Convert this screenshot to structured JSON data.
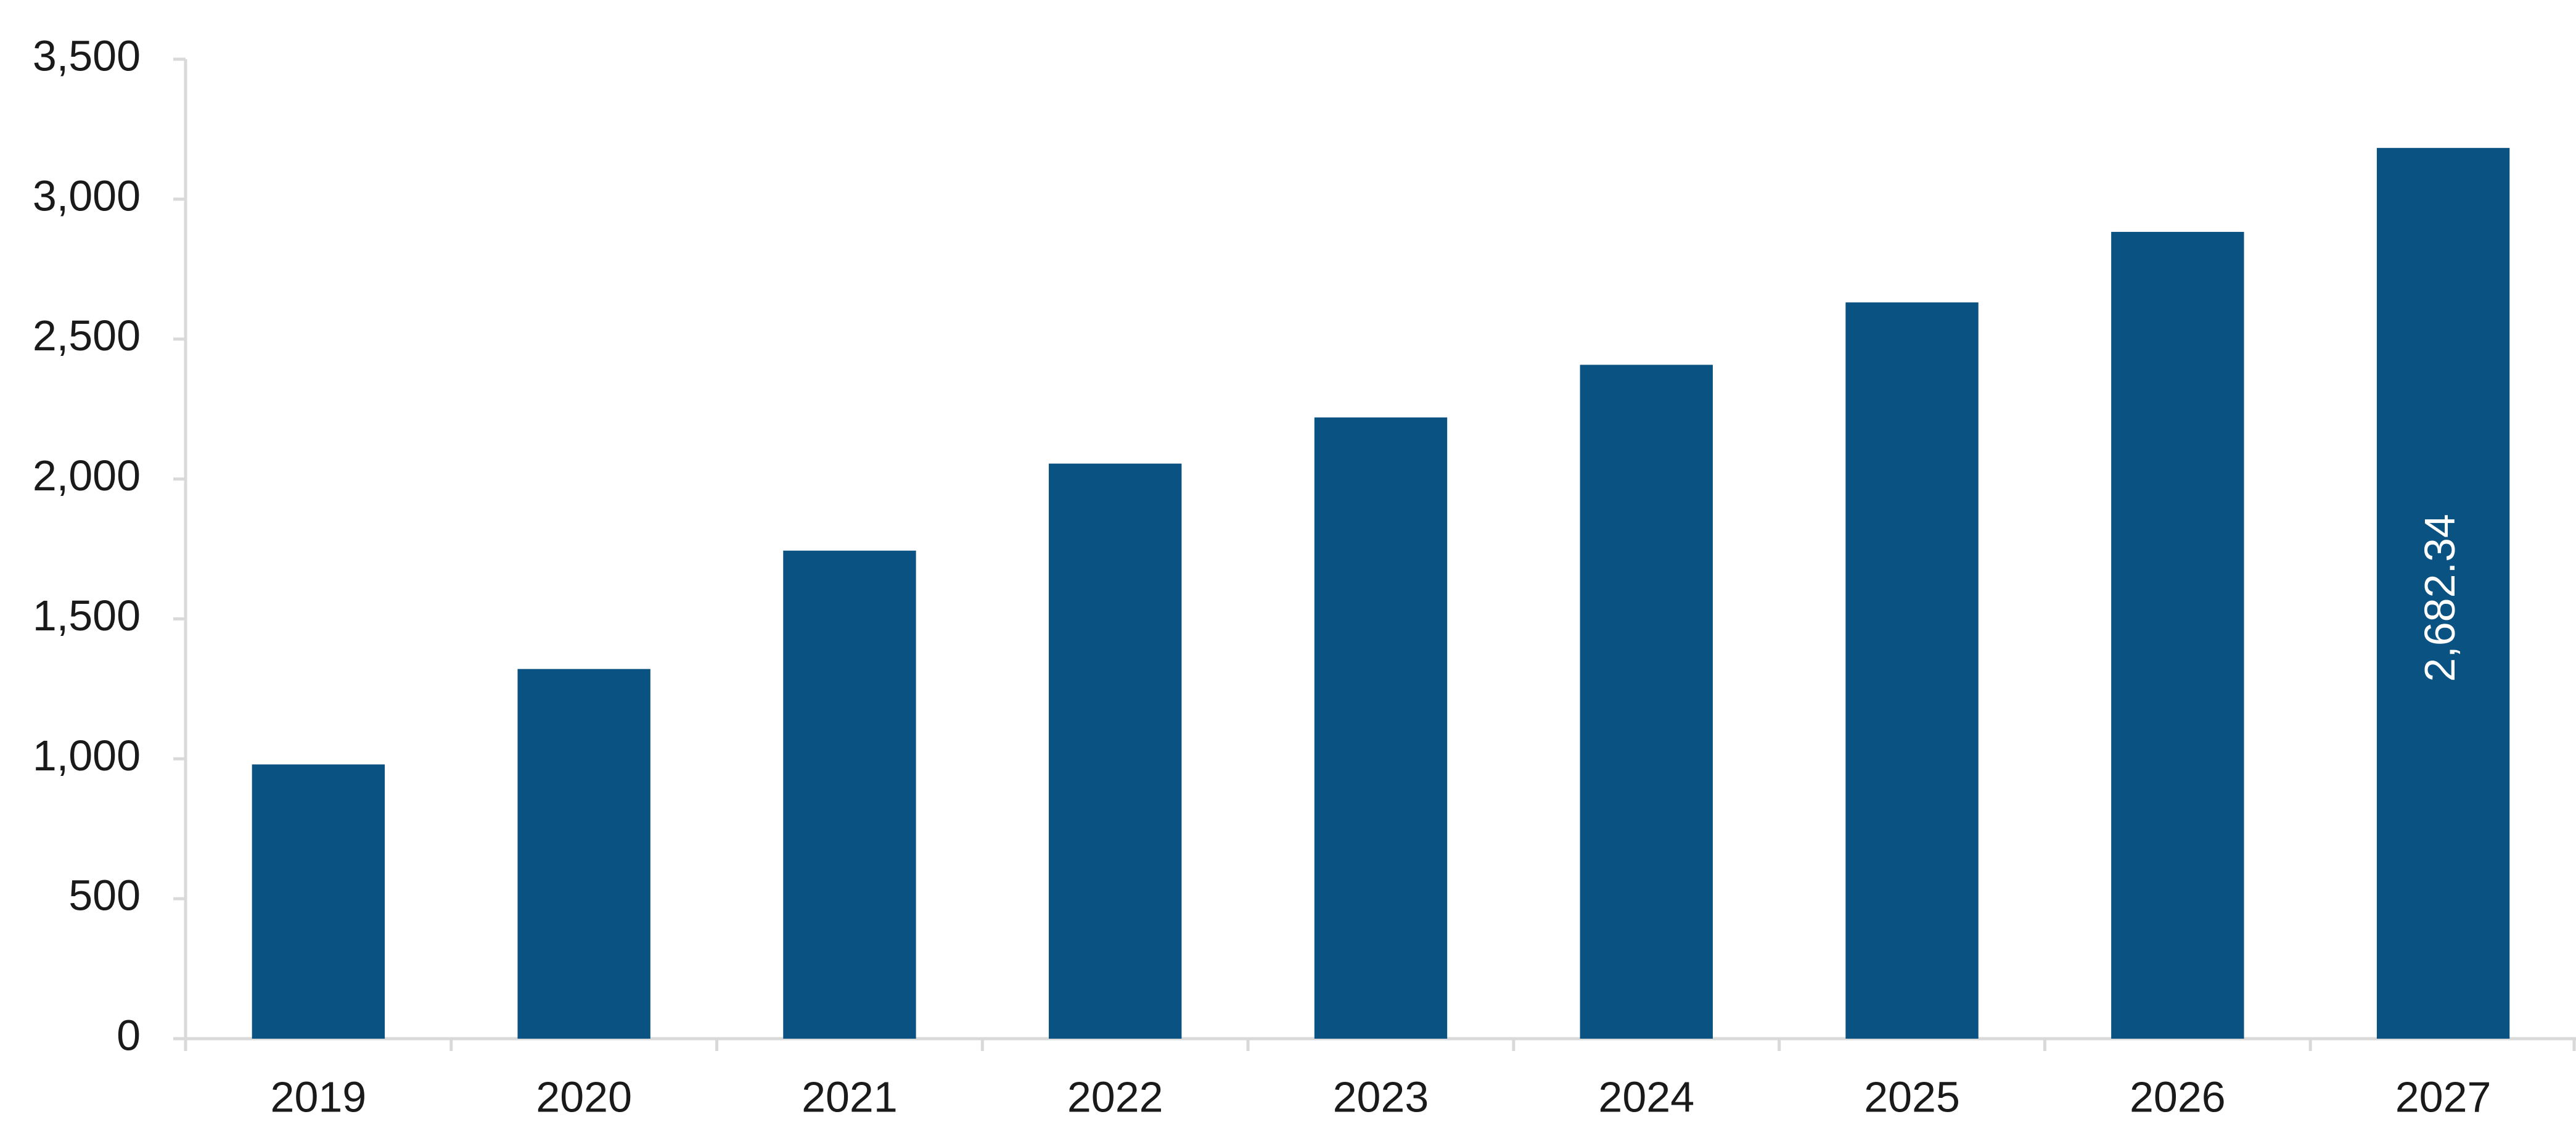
{
  "chart_data": {
    "type": "bar",
    "categories": [
      "2019",
      "2020",
      "2021",
      "2022",
      "2023",
      "2024",
      "2025",
      "2026",
      "2027"
    ],
    "values": [
      980,
      1321,
      1744,
      2055,
      2220,
      2408,
      2631,
      2883,
      3183
    ],
    "color": "#0a5281",
    "ylim": [
      0,
      3500
    ],
    "yticks": [
      0,
      {
        "value": 500,
        "label": "500"
      },
      {
        "value": 1000,
        "label": "1,000"
      },
      {
        "value": 1500,
        "label": "1,500"
      },
      {
        "value": 2000,
        "label": "2,000"
      },
      {
        "value": 2500,
        "label": "2,500"
      },
      {
        "value": 3000,
        "label": "3,000"
      },
      {
        "value": 3500,
        "label": "3,500"
      }
    ],
    "grid": false,
    "annotation": "2,682.34"
  }
}
